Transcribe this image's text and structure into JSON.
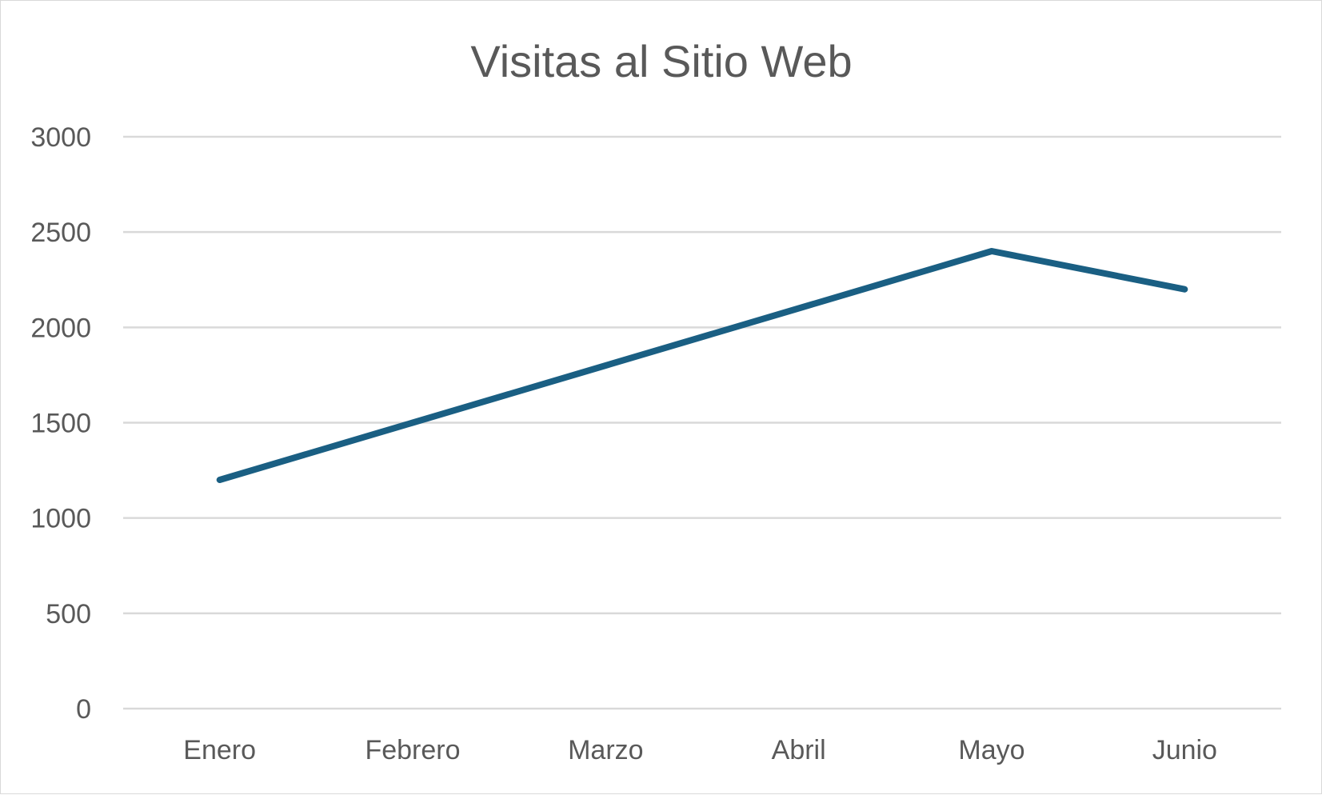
{
  "chart_data": {
    "type": "line",
    "title": "Visitas al Sitio Web",
    "xlabel": "",
    "ylabel": "",
    "categories": [
      "Enero",
      "Febrero",
      "Marzo",
      "Abril",
      "Mayo",
      "Junio"
    ],
    "series": [
      {
        "values": [
          1200,
          1500,
          1800,
          2100,
          2400,
          2200
        ],
        "color": "#1a5f83"
      }
    ],
    "ylim": [
      0,
      3000
    ],
    "yticks": [
      "0",
      "500",
      "1000",
      "1500",
      "2000",
      "2500",
      "3000"
    ],
    "grid": true,
    "legend": "none"
  }
}
